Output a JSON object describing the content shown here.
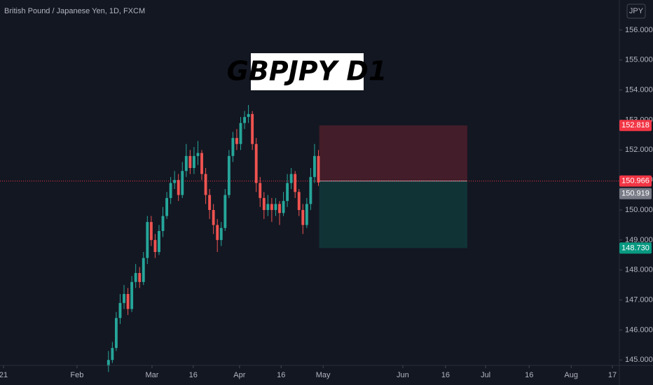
{
  "chart_data": {
    "type": "candlestick",
    "subtitle": "British Pound / Japanese Yen, 1D, FXCM",
    "title": "GBPJPY D1",
    "currency": "JPY",
    "up_color": "#26a69a",
    "down_color": "#ef5350",
    "xlim": [
      -0.9,
      158.4
    ],
    "xticks": [
      {
        "value": 0,
        "label": "21"
      },
      {
        "value": 18.9,
        "label": "Feb"
      },
      {
        "value": 38.2,
        "label": "Mar"
      },
      {
        "value": 48.8,
        "label": "16"
      },
      {
        "value": 60.7,
        "label": "Apr"
      },
      {
        "value": 71.4,
        "label": "16"
      },
      {
        "value": 82.2,
        "label": "May"
      },
      {
        "value": 102.7,
        "label": "Jun"
      },
      {
        "value": 113.7,
        "label": "16"
      },
      {
        "value": 124,
        "label": "Jul"
      },
      {
        "value": 135.2,
        "label": "16"
      },
      {
        "value": 146,
        "label": "Aug"
      },
      {
        "value": 156.6,
        "label": "17"
      }
    ],
    "ylim": [
      144.82,
      157.0
    ],
    "yticks": [
      {
        "value": 145,
        "label": "145.000"
      },
      {
        "value": 146,
        "label": "146.000"
      },
      {
        "value": 147,
        "label": "147.000"
      },
      {
        "value": 148,
        "label": "148.000"
      },
      {
        "value": 149,
        "label": "149.000"
      },
      {
        "value": 150,
        "label": "150.000"
      },
      {
        "value": 151,
        "label": "151.000"
      },
      {
        "value": 152,
        "label": "152.000"
      },
      {
        "value": 153,
        "label": "153.000"
      },
      {
        "value": 154,
        "label": "154.000"
      },
      {
        "value": 155,
        "label": "155.000"
      },
      {
        "value": 156,
        "label": "156.000"
      }
    ],
    "x": [
      27,
      28,
      29,
      30,
      31,
      32,
      33,
      34,
      35,
      36,
      37,
      38,
      39,
      40,
      41,
      42,
      43,
      44,
      45,
      46,
      47,
      48,
      49,
      50,
      51,
      52,
      53,
      54,
      55,
      56,
      57,
      58,
      59,
      60,
      61,
      62,
      63,
      64,
      65,
      66,
      67,
      68,
      69,
      70,
      71,
      72,
      73,
      74,
      75,
      76,
      77,
      78,
      79,
      80,
      81
    ],
    "open": [
      144.8,
      145.0,
      145.4,
      146.4,
      146.9,
      147.2,
      146.7,
      147.6,
      147.9,
      147.6,
      148.4,
      149.6,
      149.0,
      148.6,
      149.3,
      149.8,
      150.4,
      150.9,
      151.0,
      150.5,
      151.3,
      151.8,
      151.4,
      151.8,
      151.9,
      151.2,
      150.5,
      150.0,
      149.5,
      149.0,
      149.4,
      150.5,
      151.8,
      152.4,
      152.2,
      152.9,
      153.1,
      153.2,
      152.2,
      150.9,
      150.4,
      150.0,
      150.2,
      150.0,
      150.2,
      149.9,
      150.3,
      150.9,
      151.2,
      150.6,
      150.0,
      149.5,
      150.2,
      151.1,
      151.8
    ],
    "high": [
      145.3,
      145.6,
      146.6,
      147.2,
      147.5,
      147.4,
      147.8,
      148.2,
      148.1,
      148.6,
      149.8,
      149.8,
      149.2,
      149.5,
      150.1,
      150.6,
      151.1,
      151.3,
      151.2,
      151.6,
      152.2,
      152.0,
      152.1,
      152.3,
      152.0,
      151.4,
      150.7,
      150.2,
      149.7,
      149.6,
      150.7,
      152.0,
      152.6,
      152.7,
      153.1,
      153.3,
      153.5,
      153.3,
      152.4,
      151.1,
      150.6,
      150.5,
      150.4,
      150.4,
      150.3,
      150.6,
      151.2,
      151.4,
      151.3,
      150.7,
      150.2,
      150.4,
      151.4,
      152.2,
      152.0
    ],
    "low": [
      144.6,
      144.9,
      145.3,
      146.2,
      146.7,
      146.5,
      146.6,
      147.4,
      147.4,
      147.5,
      148.2,
      148.8,
      148.4,
      148.5,
      149.1,
      149.7,
      150.2,
      150.7,
      150.3,
      150.4,
      151.1,
      151.2,
      151.2,
      151.5,
      151.0,
      150.2,
      149.7,
      149.2,
      148.6,
      148.8,
      149.3,
      150.4,
      151.6,
      152.0,
      152.0,
      152.7,
      152.9,
      152.0,
      150.6,
      150.1,
      149.7,
      149.8,
      149.6,
      149.8,
      149.5,
      149.8,
      150.1,
      150.7,
      150.4,
      149.8,
      149.2,
      149.4,
      150.0,
      150.9,
      150.8
    ],
    "close": [
      145.0,
      145.4,
      146.4,
      146.9,
      147.2,
      146.7,
      147.6,
      147.9,
      147.6,
      148.4,
      149.6,
      149.0,
      148.6,
      149.3,
      149.8,
      150.4,
      150.9,
      151.0,
      150.5,
      151.3,
      151.8,
      151.4,
      151.8,
      151.9,
      151.2,
      150.5,
      150.0,
      149.5,
      149.0,
      149.4,
      150.5,
      151.8,
      152.4,
      152.2,
      152.9,
      153.1,
      153.2,
      152.2,
      150.9,
      150.4,
      150.0,
      150.2,
      150.0,
      150.2,
      149.9,
      150.3,
      150.9,
      151.2,
      150.6,
      150.0,
      149.5,
      150.2,
      151.1,
      151.8,
      150.919
    ],
    "position": {
      "x_start": 81.2,
      "x_end": 119.3,
      "stop": {
        "value": 152.818,
        "label": "152.818",
        "color": "#f23645"
      },
      "entry": {
        "value": 150.966,
        "label": "150.966",
        "color": "#f23645"
      },
      "target": {
        "value": 148.73,
        "label": "148.730",
        "color": "#089981"
      }
    },
    "last_price": {
      "value": 150.919,
      "label": "150.919",
      "color": "#787b86"
    }
  }
}
